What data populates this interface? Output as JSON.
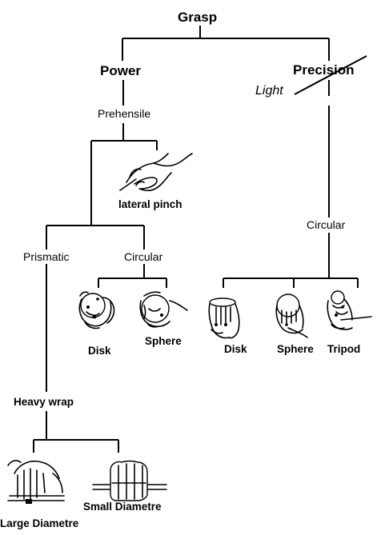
{
  "root": "Grasp",
  "power": {
    "label": "Power",
    "prehensile": "Prehensile",
    "lateral_pinch": "lateral pinch",
    "prismatic": {
      "label": "Prismatic",
      "heavy_wrap": "Heavy wrap",
      "large_diametre": "Large Diametre",
      "small_diametre": "Small Diametre"
    },
    "circular": {
      "label": "Circular",
      "disk": "Disk",
      "sphere": "Sphere"
    }
  },
  "precision": {
    "label": "Precision",
    "annotation": "Light",
    "circular": {
      "label": "Circular",
      "disk": "Disk",
      "sphere": "Sphere",
      "tripod": "Tripod"
    }
  }
}
